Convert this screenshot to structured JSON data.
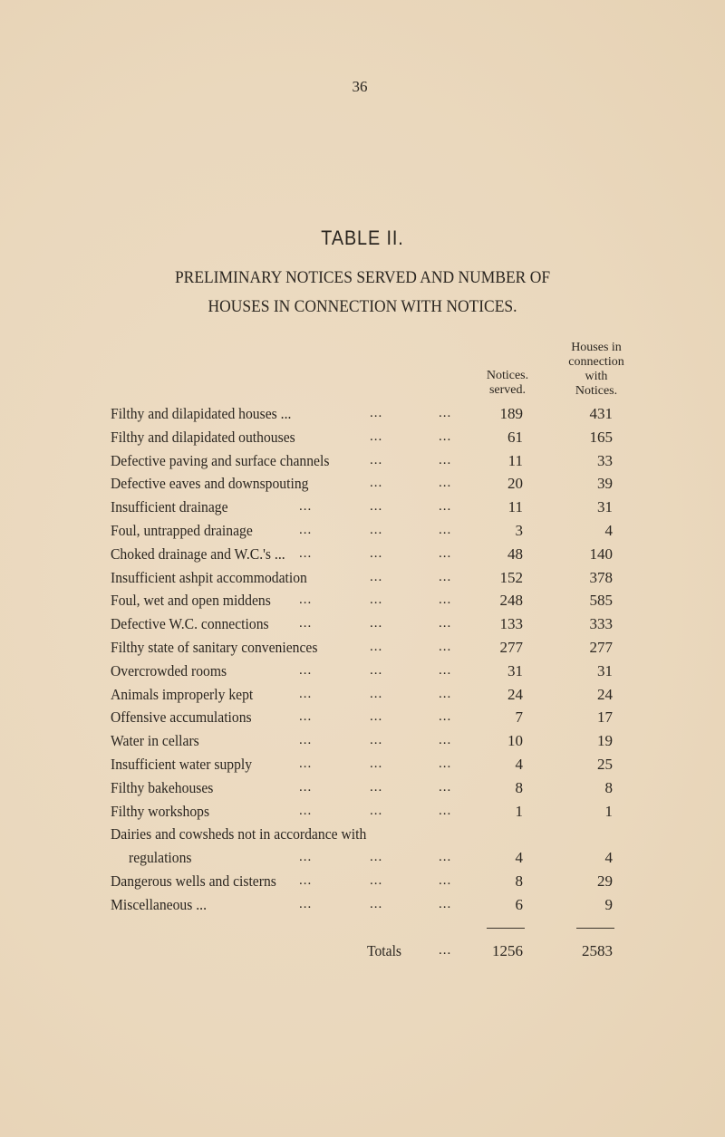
{
  "page_number": "36",
  "title": "TABLE II.",
  "heading": [
    "PRELIMINARY NOTICES SERVED AND NUMBER OF",
    "HOUSES IN CONNECTION WITH NOTICES."
  ],
  "columns": {
    "notices": [
      "Notices.",
      "served."
    ],
    "houses": [
      "Houses in",
      "connection",
      "with",
      "Notices."
    ]
  },
  "leader": "...",
  "rows": [
    {
      "label": "Filthy and dilapidated houses ...",
      "notices": "189",
      "houses": "431"
    },
    {
      "label": "Filthy and dilapidated outhouses",
      "notices": "61",
      "houses": "165"
    },
    {
      "label": "Defective paving and surface channels",
      "notices": "11",
      "houses": "33"
    },
    {
      "label": "Defective eaves and downspouting",
      "notices": "20",
      "houses": "39"
    },
    {
      "label": "Insufficient drainage",
      "notices": "11",
      "houses": "31"
    },
    {
      "label": "Foul, untrapped drainage",
      "notices": "3",
      "houses": "4"
    },
    {
      "label": "Choked drainage and W.C.'s ...",
      "notices": "48",
      "houses": "140"
    },
    {
      "label": "Insufficient ashpit accommodation",
      "notices": "152",
      "houses": "378"
    },
    {
      "label": "Foul, wet and open middens",
      "notices": "248",
      "houses": "585"
    },
    {
      "label": "Defective W.C. connections",
      "notices": "133",
      "houses": "333"
    },
    {
      "label": "Filthy state of sanitary conveniences",
      "notices": "277",
      "houses": "277"
    },
    {
      "label": "Overcrowded rooms",
      "notices": "31",
      "houses": "31"
    },
    {
      "label": "Animals improperly kept",
      "notices": "24",
      "houses": "24"
    },
    {
      "label": "Offensive accumulations",
      "notices": "7",
      "houses": "17"
    },
    {
      "label": "Water in cellars",
      "notices": "10",
      "houses": "19"
    },
    {
      "label": "Insufficient water supply",
      "notices": "4",
      "houses": "25"
    },
    {
      "label": "Filthy bakehouses",
      "notices": "8",
      "houses": "8"
    },
    {
      "label": "Filthy workshops",
      "notices": "1",
      "houses": "1"
    },
    {
      "label": "Dairies and cowsheds not in accordance with",
      "continuation": "regulations",
      "notices": "4",
      "houses": "4"
    },
    {
      "label": "Dangerous wells and cisterns",
      "notices": "8",
      "houses": "29"
    },
    {
      "label": "Miscellaneous ...",
      "notices": "6",
      "houses": "9"
    }
  ],
  "totals": {
    "label": "Totals",
    "notices": "1256",
    "houses": "2583"
  }
}
